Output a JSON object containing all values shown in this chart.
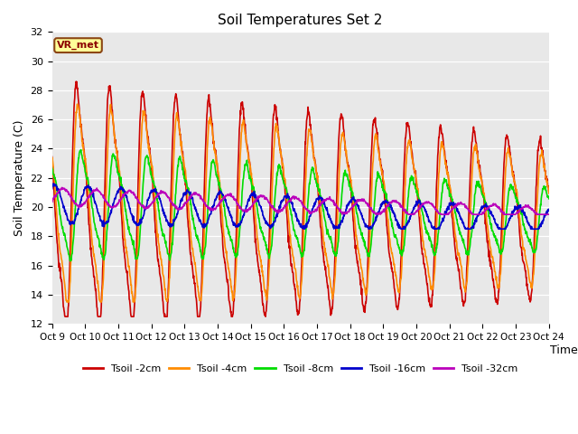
{
  "title": "Soil Temperatures Set 2",
  "xlabel": "Time",
  "ylabel": "Soil Temperature (C)",
  "ylim": [
    12,
    32
  ],
  "xlim": [
    0,
    360
  ],
  "x_tick_labels": [
    "Oct 9",
    "Oct 10",
    "Oct 11",
    "Oct 12",
    "Oct 13",
    "Oct 14",
    "Oct 15",
    "Oct 16",
    "Oct 17",
    "Oct 18",
    "Oct 19",
    "Oct 20",
    "Oct 21",
    "Oct 22",
    "Oct 23",
    "Oct 24"
  ],
  "colors": {
    "Tsoil -2cm": "#cc0000",
    "Tsoil -4cm": "#ff8c00",
    "Tsoil -8cm": "#00dd00",
    "Tsoil -16cm": "#0000cc",
    "Tsoil -32cm": "#bb00bb"
  },
  "annotation_text": "VR_met",
  "bg_color": "#e8e8e8",
  "line_width": 1.2
}
